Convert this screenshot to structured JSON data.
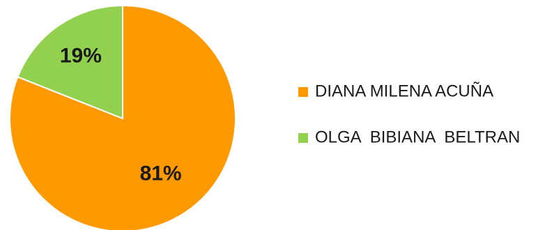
{
  "chart_data": {
    "type": "pie",
    "title": "",
    "legend_position": "right",
    "slices": [
      {
        "name": "DIANA MILENA ACUÑA",
        "value": 81,
        "label": "81%",
        "color": "#ff9900"
      },
      {
        "name": "OLGA  BIBIANA  BELTRAN",
        "value": 19,
        "label": "19%",
        "color": "#92d050"
      }
    ]
  }
}
